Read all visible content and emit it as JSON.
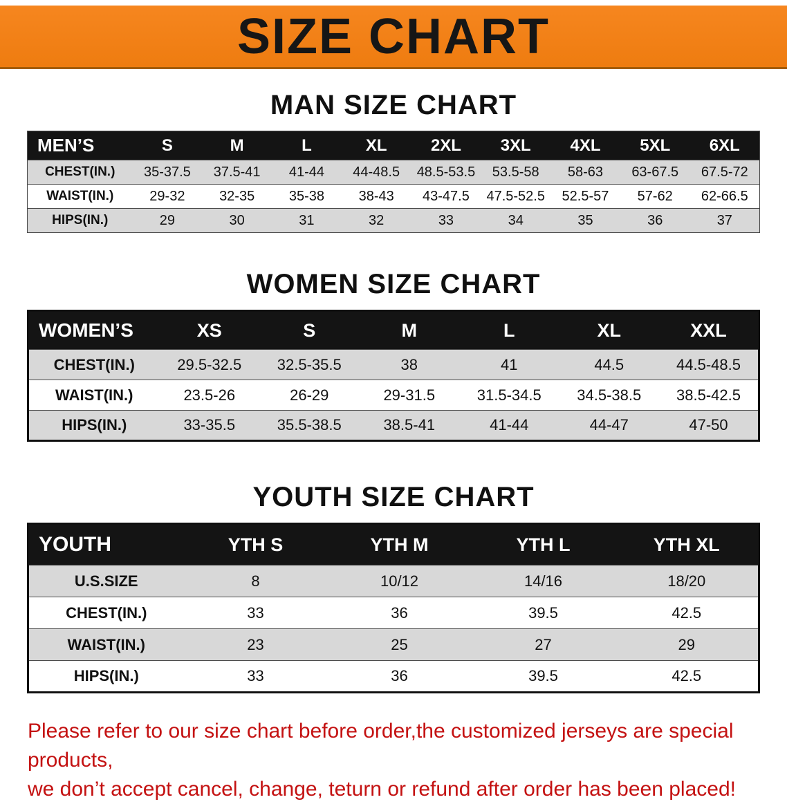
{
  "theme": {
    "banner-orange": "#f6861f",
    "banner-orange-dark": "#ee7c10",
    "header-black": "#141414",
    "row-gray": "#d8d8d8",
    "disclaimer-red": "#c41212"
  },
  "banner": {
    "title": "SIZE CHART"
  },
  "sections": [
    {
      "variant": "men",
      "heading": "MAN SIZE CHART",
      "table": {
        "header": [
          "MEN’S",
          "S",
          "M",
          "L",
          "XL",
          "2XL",
          "3XL",
          "4XL",
          "5XL",
          "6XL"
        ],
        "rows": [
          [
            "CHEST(IN.)",
            "35-37.5",
            "37.5-41",
            "41-44",
            "44-48.5",
            "48.5-53.5",
            "53.5-58",
            "58-63",
            "63-67.5",
            "67.5-72"
          ],
          [
            "WAIST(IN.)",
            "29-32",
            "32-35",
            "35-38",
            "38-43",
            "43-47.5",
            "47.5-52.5",
            "52.5-57",
            "57-62",
            "62-66.5"
          ],
          [
            "HIPS(IN.)",
            "29",
            "30",
            "31",
            "32",
            "33",
            "34",
            "35",
            "36",
            "37"
          ]
        ]
      }
    },
    {
      "variant": "women",
      "heading": "WOMEN SIZE CHART",
      "table": {
        "header": [
          "WOMEN’S",
          "XS",
          "S",
          "M",
          "L",
          "XL",
          "XXL"
        ],
        "rows": [
          [
            "CHEST(IN.)",
            "29.5-32.5",
            "32.5-35.5",
            "38",
            "41",
            "44.5",
            "44.5-48.5"
          ],
          [
            "WAIST(IN.)",
            "23.5-26",
            "26-29",
            "29-31.5",
            "31.5-34.5",
            "34.5-38.5",
            "38.5-42.5"
          ],
          [
            "HIPS(IN.)",
            "33-35.5",
            "35.5-38.5",
            "38.5-41",
            "41-44",
            "44-47",
            "47-50"
          ]
        ]
      }
    },
    {
      "variant": "youth",
      "heading": "YOUTH SIZE CHART",
      "table": {
        "header": [
          "YOUTH",
          "YTH S",
          "YTH M",
          "YTH L",
          "YTH XL"
        ],
        "rows": [
          [
            "U.S.SIZE",
            "8",
            "10/12",
            "14/16",
            "18/20"
          ],
          [
            "CHEST(IN.)",
            "33",
            "36",
            "39.5",
            "42.5"
          ],
          [
            "WAIST(IN.)",
            "23",
            "25",
            "27",
            "29"
          ],
          [
            "HIPS(IN.)",
            "33",
            "36",
            "39.5",
            "42.5"
          ]
        ]
      }
    }
  ],
  "footer": {
    "line1": "Please refer to our size chart before order,the customized jerseys are special products,",
    "line2": "we don’t accept cancel, change, teturn or refund after order has been placed!"
  }
}
